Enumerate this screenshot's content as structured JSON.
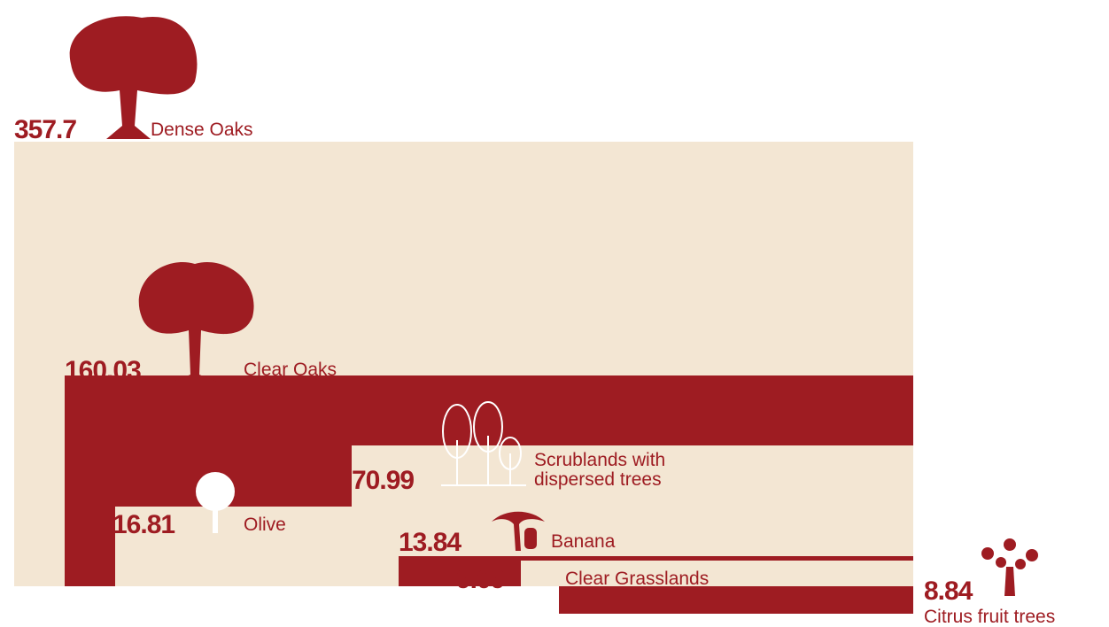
{
  "chart_data": {
    "type": "nested-area",
    "categories": [
      "Dense Oaks",
      "Clear Oaks",
      "Scrublands with dispersed trees",
      "Olive",
      "Banana",
      "Clear Grasslands",
      "Citrus fruit trees"
    ],
    "values": [
      357.7,
      160.03,
      70.99,
      16.81,
      13.84,
      9.09,
      8.84
    ],
    "colors": [
      "#f3e6d3",
      "#9e1c22",
      "#f3e6d3",
      "#f3e6d3",
      "#9e1c22",
      "#f3e6d3",
      "#9e1c22"
    ]
  }
}
